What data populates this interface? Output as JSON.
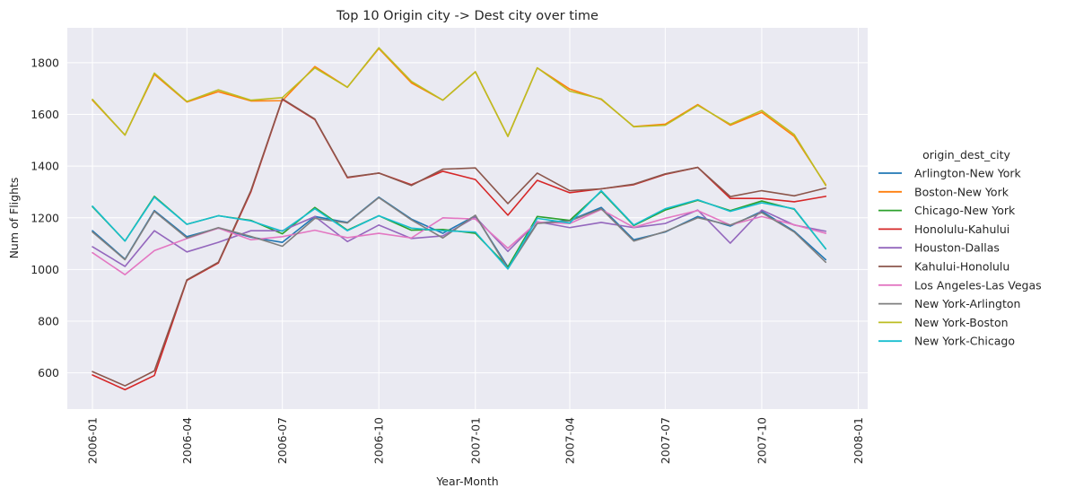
{
  "chart_data": {
    "type": "line",
    "title": "Top 10 Origin city -> Dest city over time",
    "xlabel": "Year-Month",
    "ylabel": "Num of Flights",
    "legend_title": "origin_dest_city",
    "legend_placement": "right",
    "grid": true,
    "background": "#eaeaf2",
    "ylim": [
      460,
      1935
    ],
    "xlim": [
      "2005-12-08",
      "2008-01-10"
    ],
    "yticks": [
      600,
      800,
      1000,
      1200,
      1400,
      1600,
      1800
    ],
    "xticks": [
      "2006-01",
      "2006-04",
      "2006-07",
      "2006-10",
      "2007-01",
      "2007-04",
      "2007-07",
      "2007-10",
      "2008-01"
    ],
    "x": [
      "2006-01",
      "2006-02",
      "2006-03",
      "2006-04",
      "2006-05",
      "2006-06",
      "2006-07",
      "2006-08",
      "2006-09",
      "2006-10",
      "2006-11",
      "2006-12",
      "2007-01",
      "2007-02",
      "2007-03",
      "2007-04",
      "2007-05",
      "2007-06",
      "2007-07",
      "2007-08",
      "2007-09",
      "2007-10",
      "2007-11",
      "2007-12"
    ],
    "series": [
      {
        "name": "Arlington-New York",
        "color": "#1f77b4",
        "values": [
          1150,
          1040,
          1228,
          1127,
          1160,
          1125,
          1105,
          1205,
          1182,
          1280,
          1195,
          1140,
          1208,
          1010,
          1180,
          1190,
          1240,
          1115,
          1145,
          1205,
          1168,
          1225,
          1148,
          1038
        ]
      },
      {
        "name": "Boston-New York",
        "color": "#ff7f0e",
        "values": [
          1655,
          1520,
          1755,
          1648,
          1688,
          1652,
          1653,
          1785,
          1705,
          1855,
          1722,
          1655,
          1765,
          1515,
          1780,
          1698,
          1658,
          1553,
          1562,
          1638,
          1558,
          1608,
          1515,
          1328
        ]
      },
      {
        "name": "Chicago-New York",
        "color": "#2ca02c",
        "values": [
          1243,
          1110,
          1283,
          1175,
          1208,
          1190,
          1138,
          1240,
          1152,
          1208,
          1152,
          1155,
          1140,
          1010,
          1205,
          1190,
          1302,
          1170,
          1230,
          1268,
          1228,
          1265,
          1233,
          1080
        ]
      },
      {
        "name": "Honolulu-Kahului",
        "color": "#d62728",
        "values": [
          592,
          535,
          590,
          958,
          1025,
          1300,
          1658,
          1580,
          1355,
          1373,
          1328,
          1380,
          1348,
          1210,
          1345,
          1297,
          1312,
          1328,
          1368,
          1395,
          1275,
          1275,
          1262,
          1283
        ]
      },
      {
        "name": "Houston-Dallas",
        "color": "#9467bd",
        "values": [
          1088,
          1012,
          1150,
          1068,
          1105,
          1150,
          1150,
          1205,
          1108,
          1172,
          1120,
          1130,
          1203,
          1070,
          1185,
          1162,
          1182,
          1162,
          1178,
          1230,
          1102,
          1230,
          1172,
          1148
        ]
      },
      {
        "name": "Kahului-Honolulu",
        "color": "#8c564b",
        "values": [
          605,
          550,
          608,
          960,
          1028,
          1305,
          1660,
          1582,
          1357,
          1373,
          1325,
          1388,
          1393,
          1255,
          1373,
          1305,
          1312,
          1330,
          1370,
          1395,
          1282,
          1305,
          1285,
          1315
        ]
      },
      {
        "name": "Los Angeles-Las Vegas",
        "color": "#e377c2",
        "values": [
          1065,
          980,
          1073,
          1120,
          1160,
          1115,
          1127,
          1152,
          1123,
          1140,
          1122,
          1200,
          1195,
          1082,
          1183,
          1178,
          1232,
          1163,
          1198,
          1228,
          1172,
          1205,
          1173,
          1140
        ]
      },
      {
        "name": "New York-Arlington",
        "color": "#7f7f7f",
        "values": [
          1145,
          1038,
          1225,
          1122,
          1162,
          1128,
          1090,
          1198,
          1180,
          1278,
          1192,
          1122,
          1210,
          1003,
          1178,
          1188,
          1235,
          1110,
          1147,
          1200,
          1172,
          1220,
          1145,
          1028
        ]
      },
      {
        "name": "New York-Boston",
        "color": "#bcbd22",
        "values": [
          1658,
          1520,
          1760,
          1650,
          1695,
          1655,
          1665,
          1780,
          1705,
          1858,
          1728,
          1655,
          1765,
          1515,
          1780,
          1690,
          1660,
          1552,
          1558,
          1635,
          1562,
          1615,
          1522,
          1325
        ]
      },
      {
        "name": "New York-Chicago",
        "color": "#17becf",
        "values": [
          1245,
          1110,
          1280,
          1175,
          1208,
          1188,
          1148,
          1235,
          1150,
          1208,
          1160,
          1150,
          1145,
          1002,
          1198,
          1180,
          1305,
          1172,
          1235,
          1270,
          1225,
          1258,
          1235,
          1080
        ]
      }
    ]
  }
}
